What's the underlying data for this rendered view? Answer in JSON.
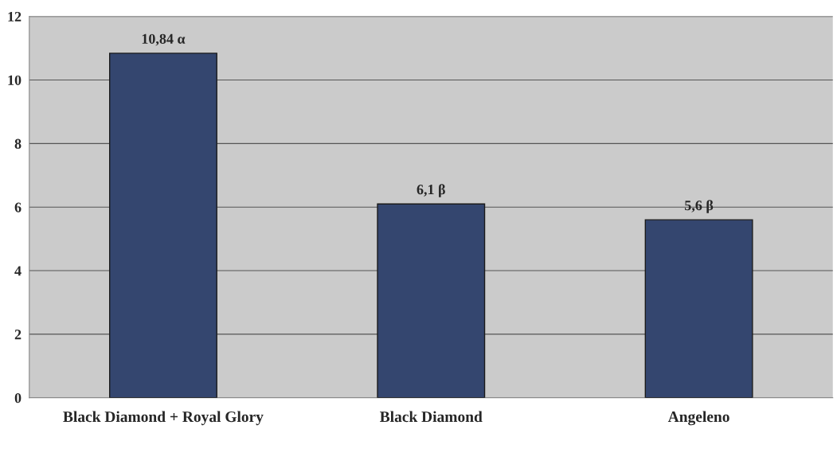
{
  "chart_data": {
    "type": "bar",
    "categories": [
      "Black Diamond + Royal Glory",
      "Black Diamond",
      "Angeleno"
    ],
    "values": [
      10.84,
      6.1,
      5.6
    ],
    "value_labels": [
      "10,84 α",
      "6,1 β",
      "5,6 β"
    ],
    "color": "#34466f",
    "ylim": [
      0,
      12
    ],
    "yticks": [
      0,
      2,
      4,
      6,
      8,
      10,
      12
    ],
    "grid": "y"
  }
}
